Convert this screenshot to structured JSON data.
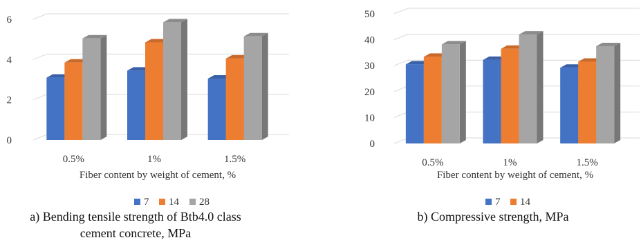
{
  "chart_data": [
    {
      "type": "bar",
      "style": "3d-column",
      "categories": [
        "0.5%",
        "1%",
        "1.5%"
      ],
      "series": [
        {
          "name": "7",
          "values": [
            3.1,
            3.45,
            3.05
          ],
          "color": "#4472C4"
        },
        {
          "name": "14",
          "values": [
            3.85,
            4.85,
            4.05
          ],
          "color": "#ED7D31"
        },
        {
          "name": "28",
          "values": [
            5.05,
            5.85,
            5.15
          ],
          "color": "#A5A5A5"
        }
      ],
      "xlabel": "Fiber content by weight of cement, %",
      "ylabel": "",
      "ylim": [
        0,
        6
      ],
      "yticks": [
        "0",
        "2",
        "4",
        "6"
      ],
      "grid": true,
      "legend": "bottom",
      "caption": [
        "a) Bending tensile strength of Btb4.0 class",
        "cement concrete, MPa"
      ]
    },
    {
      "type": "bar",
      "style": "3d-column",
      "categories": [
        "0.5%",
        "1%",
        "1.5%"
      ],
      "series": [
        {
          "name": "7",
          "values": [
            30.5,
            32.2,
            29.2
          ],
          "color": "#4472C4"
        },
        {
          "name": "14",
          "values": [
            33.4,
            36.5,
            31.5
          ],
          "color": "#ED7D31"
        },
        {
          "name": "",
          "values": [
            38.2,
            42.0,
            37.5
          ],
          "color": "#A5A5A5"
        }
      ],
      "xlabel": "Fiber content by weight of cement, %",
      "ylabel": "",
      "ylim": [
        0,
        50
      ],
      "yticks": [
        "0",
        "10",
        "20",
        "30",
        "40",
        "50"
      ],
      "grid": true,
      "legend": "bottom",
      "caption": [
        "b) Compressive strength, MPa"
      ]
    }
  ]
}
